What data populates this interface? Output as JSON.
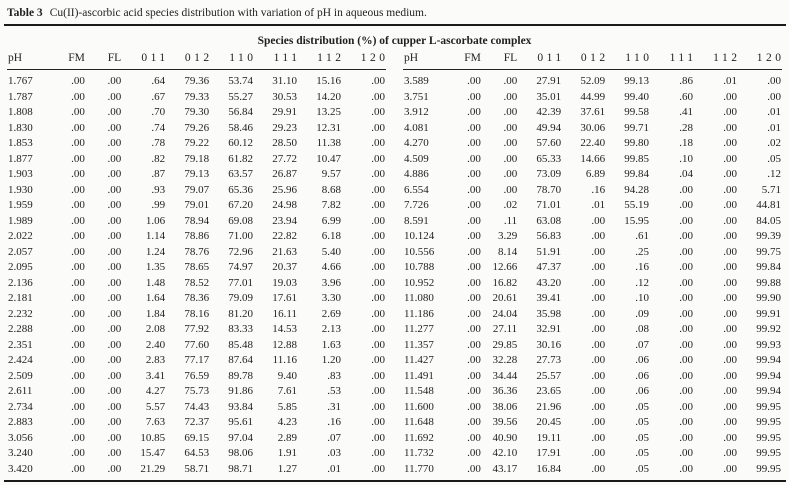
{
  "page": {
    "title_label": "Table 3",
    "title_text": "Cu(II)-ascorbic acid species distribution with variation of pH in aqueous medium."
  },
  "table": {
    "span_header": "Species distribution (%) of cupper L-ascorbate complex",
    "columns": [
      "pH",
      "FM",
      "FL",
      "011",
      "012",
      "110",
      "111",
      "112",
      "120"
    ],
    "left_rows": [
      [
        "1.767",
        ".00",
        ".00",
        ".64",
        "79.36",
        "53.74",
        "31.10",
        "15.16",
        ".00"
      ],
      [
        "1.787",
        ".00",
        ".00",
        ".67",
        "79.33",
        "55.27",
        "30.53",
        "14.20",
        ".00"
      ],
      [
        "1.808",
        ".00",
        ".00",
        ".70",
        "79.30",
        "56.84",
        "29.91",
        "13.25",
        ".00"
      ],
      [
        "1.830",
        ".00",
        ".00",
        ".74",
        "79.26",
        "58.46",
        "29.23",
        "12.31",
        ".00"
      ],
      [
        "1.853",
        ".00",
        ".00",
        ".78",
        "79.22",
        "60.12",
        "28.50",
        "11.38",
        ".00"
      ],
      [
        "1.877",
        ".00",
        ".00",
        ".82",
        "79.18",
        "61.82",
        "27.72",
        "10.47",
        ".00"
      ],
      [
        "1.903",
        ".00",
        ".00",
        ".87",
        "79.13",
        "63.57",
        "26.87",
        "9.57",
        ".00"
      ],
      [
        "1.930",
        ".00",
        ".00",
        ".93",
        "79.07",
        "65.36",
        "25.96",
        "8.68",
        ".00"
      ],
      [
        "1.959",
        ".00",
        ".00",
        ".99",
        "79.01",
        "67.20",
        "24.98",
        "7.82",
        ".00"
      ],
      [
        "1.989",
        ".00",
        ".00",
        "1.06",
        "78.94",
        "69.08",
        "23.94",
        "6.99",
        ".00"
      ],
      [
        "2.022",
        ".00",
        ".00",
        "1.14",
        "78.86",
        "71.00",
        "22.82",
        "6.18",
        ".00"
      ],
      [
        "2.057",
        ".00",
        ".00",
        "1.24",
        "78.76",
        "72.96",
        "21.63",
        "5.40",
        ".00"
      ],
      [
        "2.095",
        ".00",
        ".00",
        "1.35",
        "78.65",
        "74.97",
        "20.37",
        "4.66",
        ".00"
      ],
      [
        "2.136",
        ".00",
        ".00",
        "1.48",
        "78.52",
        "77.01",
        "19.03",
        "3.96",
        ".00"
      ],
      [
        "2.181",
        ".00",
        ".00",
        "1.64",
        "78.36",
        "79.09",
        "17.61",
        "3.30",
        ".00"
      ],
      [
        "2.232",
        ".00",
        ".00",
        "1.84",
        "78.16",
        "81.20",
        "16.11",
        "2.69",
        ".00"
      ],
      [
        "2.288",
        ".00",
        ".00",
        "2.08",
        "77.92",
        "83.33",
        "14.53",
        "2.13",
        ".00"
      ],
      [
        "2.351",
        ".00",
        ".00",
        "2.40",
        "77.60",
        "85.48",
        "12.88",
        "1.63",
        ".00"
      ],
      [
        "2.424",
        ".00",
        ".00",
        "2.83",
        "77.17",
        "87.64",
        "11.16",
        "1.20",
        ".00"
      ],
      [
        "2.509",
        ".00",
        ".00",
        "3.41",
        "76.59",
        "89.78",
        "9.40",
        ".83",
        ".00"
      ],
      [
        "2.611",
        ".00",
        ".00",
        "4.27",
        "75.73",
        "91.86",
        "7.61",
        ".53",
        ".00"
      ],
      [
        "2.734",
        ".00",
        ".00",
        "5.57",
        "74.43",
        "93.84",
        "5.85",
        ".31",
        ".00"
      ],
      [
        "2.883",
        ".00",
        ".00",
        "7.63",
        "72.37",
        "95.61",
        "4.23",
        ".16",
        ".00"
      ],
      [
        "3.056",
        ".00",
        ".00",
        "10.85",
        "69.15",
        "97.04",
        "2.89",
        ".07",
        ".00"
      ],
      [
        "3.240",
        ".00",
        ".00",
        "15.47",
        "64.53",
        "98.06",
        "1.91",
        ".03",
        ".00"
      ],
      [
        "3.420",
        ".00",
        ".00",
        "21.29",
        "58.71",
        "98.71",
        "1.27",
        ".01",
        ".00"
      ]
    ],
    "right_rows": [
      [
        "3.589",
        ".00",
        ".00",
        "27.91",
        "52.09",
        "99.13",
        ".86",
        ".01",
        ".00"
      ],
      [
        "3.751",
        ".00",
        ".00",
        "35.01",
        "44.99",
        "99.40",
        ".60",
        ".00",
        ".00"
      ],
      [
        "3.912",
        ".00",
        ".00",
        "42.39",
        "37.61",
        "99.58",
        ".41",
        ".00",
        ".01"
      ],
      [
        "4.081",
        ".00",
        ".00",
        "49.94",
        "30.06",
        "99.71",
        ".28",
        ".00",
        ".01"
      ],
      [
        "4.270",
        ".00",
        ".00",
        "57.60",
        "22.40",
        "99.80",
        ".18",
        ".00",
        ".02"
      ],
      [
        "4.509",
        ".00",
        ".00",
        "65.33",
        "14.66",
        "99.85",
        ".10",
        ".00",
        ".05"
      ],
      [
        "4.886",
        ".00",
        ".00",
        "73.09",
        "6.89",
        "99.84",
        ".04",
        ".00",
        ".12"
      ],
      [
        "6.554",
        ".00",
        ".00",
        "78.70",
        ".16",
        "94.28",
        ".00",
        ".00",
        "5.71"
      ],
      [
        "7.726",
        ".00",
        ".02",
        "71.01",
        ".01",
        "55.19",
        ".00",
        ".00",
        "44.81"
      ],
      [
        "8.591",
        ".00",
        ".11",
        "63.08",
        ".00",
        "15.95",
        ".00",
        ".00",
        "84.05"
      ],
      [
        "10.124",
        ".00",
        "3.29",
        "56.83",
        ".00",
        ".61",
        ".00",
        ".00",
        "99.39"
      ],
      [
        "10.556",
        ".00",
        "8.14",
        "51.91",
        ".00",
        ".25",
        ".00",
        ".00",
        "99.75"
      ],
      [
        "10.788",
        ".00",
        "12.66",
        "47.37",
        ".00",
        ".16",
        ".00",
        ".00",
        "99.84"
      ],
      [
        "10.952",
        ".00",
        "16.82",
        "43.20",
        ".00",
        ".12",
        ".00",
        ".00",
        "99.88"
      ],
      [
        "11.080",
        ".00",
        "20.61",
        "39.41",
        ".00",
        ".10",
        ".00",
        ".00",
        "99.90"
      ],
      [
        "11.186",
        ".00",
        "24.04",
        "35.98",
        ".00",
        ".09",
        ".00",
        ".00",
        "99.91"
      ],
      [
        "11.277",
        ".00",
        "27.11",
        "32.91",
        ".00",
        ".08",
        ".00",
        ".00",
        "99.92"
      ],
      [
        "11.357",
        ".00",
        "29.85",
        "30.16",
        ".00",
        ".07",
        ".00",
        ".00",
        "99.93"
      ],
      [
        "11.427",
        ".00",
        "32.28",
        "27.73",
        ".00",
        ".06",
        ".00",
        ".00",
        "99.94"
      ],
      [
        "11.491",
        ".00",
        "34.44",
        "25.57",
        ".00",
        ".06",
        ".00",
        ".00",
        "99.94"
      ],
      [
        "11.548",
        ".00",
        "36.36",
        "23.65",
        ".00",
        ".06",
        ".00",
        ".00",
        "99.94"
      ],
      [
        "11.600",
        ".00",
        "38.06",
        "21.96",
        ".00",
        ".05",
        ".00",
        ".00",
        "99.95"
      ],
      [
        "11.648",
        ".00",
        "39.56",
        "20.45",
        ".00",
        ".05",
        ".00",
        ".00",
        "99.95"
      ],
      [
        "11.692",
        ".00",
        "40.90",
        "19.11",
        ".00",
        ".05",
        ".00",
        ".00",
        "99.95"
      ],
      [
        "11.732",
        ".00",
        "42.10",
        "17.91",
        ".00",
        ".05",
        ".00",
        ".00",
        "99.95"
      ],
      [
        "11.770",
        ".00",
        "43.17",
        "16.84",
        ".00",
        ".05",
        ".00",
        ".00",
        "99.95"
      ]
    ]
  },
  "colors": {
    "text": "#1f1f1f",
    "rule": "#1b1b1b",
    "background": "#fbfbfa"
  }
}
